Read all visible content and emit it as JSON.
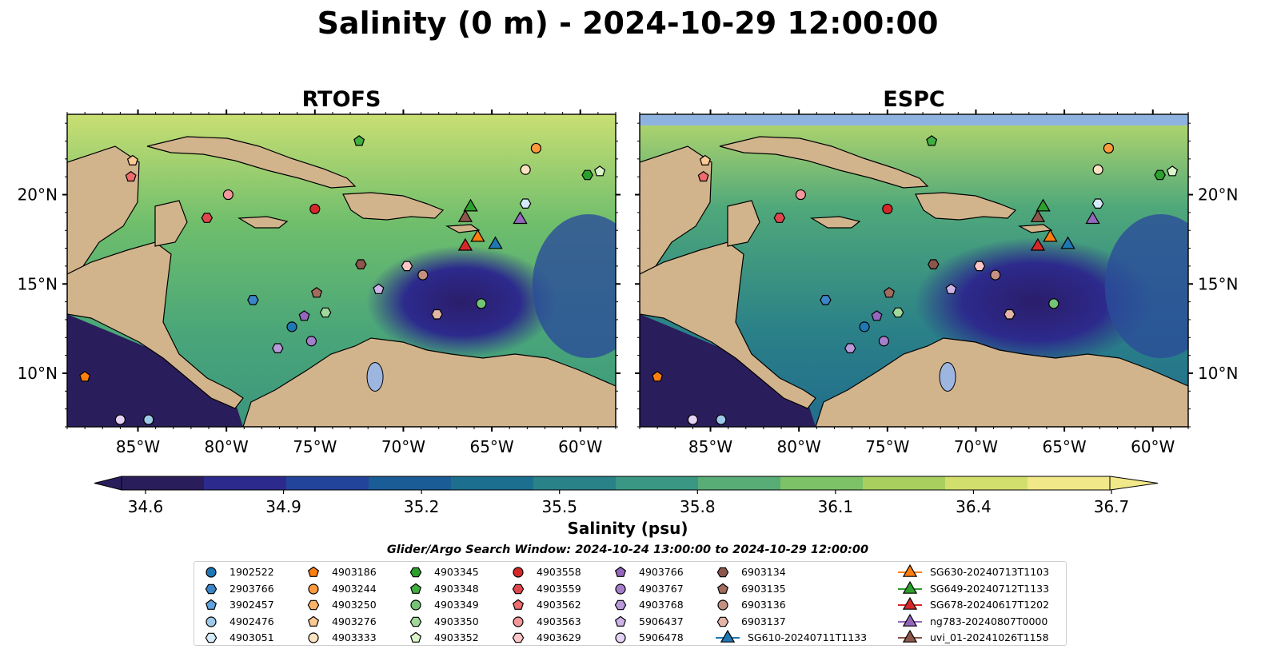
{
  "figure": {
    "title": "Salinity (0 m) - 2024-10-29 12:00:00",
    "panels": [
      {
        "id": "rtofs",
        "title": "RTOFS"
      },
      {
        "id": "espc",
        "title": "ESPC"
      }
    ],
    "lat_ticks": [
      "10°N",
      "15°N",
      "20°N"
    ],
    "lon_ticks": [
      "85°W",
      "80°W",
      "75°W",
      "70°W",
      "65°W",
      "60°W"
    ],
    "extent": {
      "lon_min": -89,
      "lon_max": -58,
      "lat_min": 7,
      "lat_max": 24.5
    }
  },
  "colorbar": {
    "label": "Salinity (psu)",
    "ticks": [
      "34.6",
      "34.9",
      "35.2",
      "35.5",
      "35.8",
      "36.1",
      "36.4",
      "36.7"
    ],
    "min": 34.6,
    "max": 36.7,
    "extend": "both",
    "colormap": [
      "#2a1d5c",
      "#2c2a8c",
      "#23449b",
      "#1a5c96",
      "#1d6f90",
      "#2a8289",
      "#3a9783",
      "#58ac76",
      "#7dc267",
      "#a9d05f",
      "#d3df6d",
      "#f1e88a"
    ]
  },
  "legend": {
    "subtitle": "Glider/Argo Search Window: 2024-10-24 13:00:00 to 2024-10-29 12:00:00",
    "columns": [
      [
        {
          "label": "1902522",
          "marker": "circle",
          "color": "#1f77b4"
        },
        {
          "label": "2903766",
          "marker": "hexagon",
          "color": "#3a86c8"
        },
        {
          "label": "3902457",
          "marker": "pentagon",
          "color": "#5fa2dd"
        },
        {
          "label": "4902476",
          "marker": "circle",
          "color": "#9ecae9"
        },
        {
          "label": "4903051",
          "marker": "hexagon",
          "color": "#d6ebfa"
        }
      ],
      [
        {
          "label": "4903186",
          "marker": "pentagon",
          "color": "#ff7f0e"
        },
        {
          "label": "4903244",
          "marker": "circle",
          "color": "#fd9a3c"
        },
        {
          "label": "4903250",
          "marker": "hexagon",
          "color": "#fdb26a"
        },
        {
          "label": "4903276",
          "marker": "pentagon",
          "color": "#fdc994"
        },
        {
          "label": "4903333",
          "marker": "circle",
          "color": "#fee2c2"
        }
      ],
      [
        {
          "label": "4903345",
          "marker": "hexagon",
          "color": "#2ca02c"
        },
        {
          "label": "4903348",
          "marker": "pentagon",
          "color": "#40b040"
        },
        {
          "label": "4903349",
          "marker": "circle",
          "color": "#74c476"
        },
        {
          "label": "4903350",
          "marker": "hexagon",
          "color": "#a1d99b"
        },
        {
          "label": "4903352",
          "marker": "pentagon",
          "color": "#d9f5c9"
        }
      ],
      [
        {
          "label": "4903558",
          "marker": "circle",
          "color": "#d62728"
        },
        {
          "label": "4903559",
          "marker": "hexagon",
          "color": "#e0474c"
        },
        {
          "label": "4903562",
          "marker": "pentagon",
          "color": "#ee6b6e"
        },
        {
          "label": "4903563",
          "marker": "circle",
          "color": "#f4979a"
        },
        {
          "label": "4903629",
          "marker": "hexagon",
          "color": "#fcc5c7"
        }
      ],
      [
        {
          "label": "4903766",
          "marker": "pentagon",
          "color": "#9467bd"
        },
        {
          "label": "4903767",
          "marker": "circle",
          "color": "#a67fcc"
        },
        {
          "label": "4903768",
          "marker": "hexagon",
          "color": "#b899da"
        },
        {
          "label": "5906437",
          "marker": "pentagon",
          "color": "#cdb4e8"
        },
        {
          "label": "5906478",
          "marker": "circle",
          "color": "#e4d3f5"
        }
      ],
      [
        {
          "label": "6903134",
          "marker": "hexagon",
          "color": "#8c564b"
        },
        {
          "label": "6903135",
          "marker": "pentagon",
          "color": "#a36b5e"
        },
        {
          "label": "6903136",
          "marker": "circle",
          "color": "#c49081"
        },
        {
          "label": "6903137",
          "marker": "hexagon",
          "color": "#e3b5a6"
        },
        {
          "label": "SG610-20240711T1133",
          "marker": "triangle-line",
          "color": "#1f77b4"
        }
      ],
      [
        {
          "label": "SG630-20240713T1103",
          "marker": "triangle-line",
          "color": "#ff7f0e"
        },
        {
          "label": "SG649-20240712T1133",
          "marker": "triangle-line",
          "color": "#2ca02c"
        },
        {
          "label": "SG678-20240617T1202",
          "marker": "triangle-line",
          "color": "#d62728"
        },
        {
          "label": "ng783-20240807T0000",
          "marker": "triangle-line",
          "color": "#9467bd"
        },
        {
          "label": "uvi_01-20241026T1158",
          "marker": "triangle-line",
          "color": "#8c564b"
        }
      ]
    ]
  },
  "floats": [
    {
      "id": "4903186",
      "lon": -88.0,
      "lat": 9.8
    },
    {
      "id": "5906478",
      "lon": -86.0,
      "lat": 7.4
    },
    {
      "id": "4902476",
      "lon": -84.4,
      "lat": 7.4
    },
    {
      "id": "4903276",
      "lon": -85.3,
      "lat": 21.9
    },
    {
      "id": "4903562",
      "lon": -85.4,
      "lat": 21.0
    },
    {
      "id": "4903563",
      "lon": -79.9,
      "lat": 20.0
    },
    {
      "id": "4903559",
      "lon": -81.1,
      "lat": 18.7
    },
    {
      "id": "4903558",
      "lon": -75.0,
      "lat": 19.2
    },
    {
      "id": "4903348",
      "lon": -72.5,
      "lat": 23.0
    },
    {
      "id": "4903244",
      "lon": -62.5,
      "lat": 22.6
    },
    {
      "id": "4903333",
      "lon": -63.1,
      "lat": 21.4
    },
    {
      "id": "4903345",
      "lon": -59.6,
      "lat": 21.1
    },
    {
      "id": "4903352",
      "lon": -58.9,
      "lat": 21.3
    },
    {
      "id": "4903051",
      "lon": -63.1,
      "lat": 19.5
    },
    {
      "id": "6903134",
      "lon": -72.4,
      "lat": 16.1
    },
    {
      "id": "4903629",
      "lon": -69.8,
      "lat": 16.0
    },
    {
      "id": "6903136",
      "lon": -68.9,
      "lat": 15.5
    },
    {
      "id": "5906437",
      "lon": -71.4,
      "lat": 14.7
    },
    {
      "id": "6903135",
      "lon": -74.9,
      "lat": 14.5
    },
    {
      "id": "2903766",
      "lon": -78.5,
      "lat": 14.1
    },
    {
      "id": "4903350",
      "lon": -74.4,
      "lat": 13.4
    },
    {
      "id": "4903766",
      "lon": -75.6,
      "lat": 13.2
    },
    {
      "id": "6903137",
      "lon": -68.1,
      "lat": 13.3
    },
    {
      "id": "4903349",
      "lon": -65.6,
      "lat": 13.9
    },
    {
      "id": "1902522",
      "lon": -76.3,
      "lat": 12.6
    },
    {
      "id": "4903768",
      "lon": -77.1,
      "lat": 11.4
    },
    {
      "id": "4903767",
      "lon": -75.2,
      "lat": 11.8
    }
  ],
  "gliders": [
    {
      "id": "SG649-20240712T1133",
      "lon": -66.2,
      "lat": 19.3
    },
    {
      "id": "uvi_01-20241026T1158",
      "lon": -66.5,
      "lat": 18.7
    },
    {
      "id": "ng783-20240807T0000",
      "lon": -63.4,
      "lat": 18.6
    },
    {
      "id": "SG630-20240713T1103",
      "lon": -65.8,
      "lat": 17.6
    },
    {
      "id": "SG610-20240711T1133",
      "lon": -64.8,
      "lat": 17.2
    },
    {
      "id": "SG678-20240617T1202",
      "lon": -66.5,
      "lat": 17.1
    }
  ]
}
